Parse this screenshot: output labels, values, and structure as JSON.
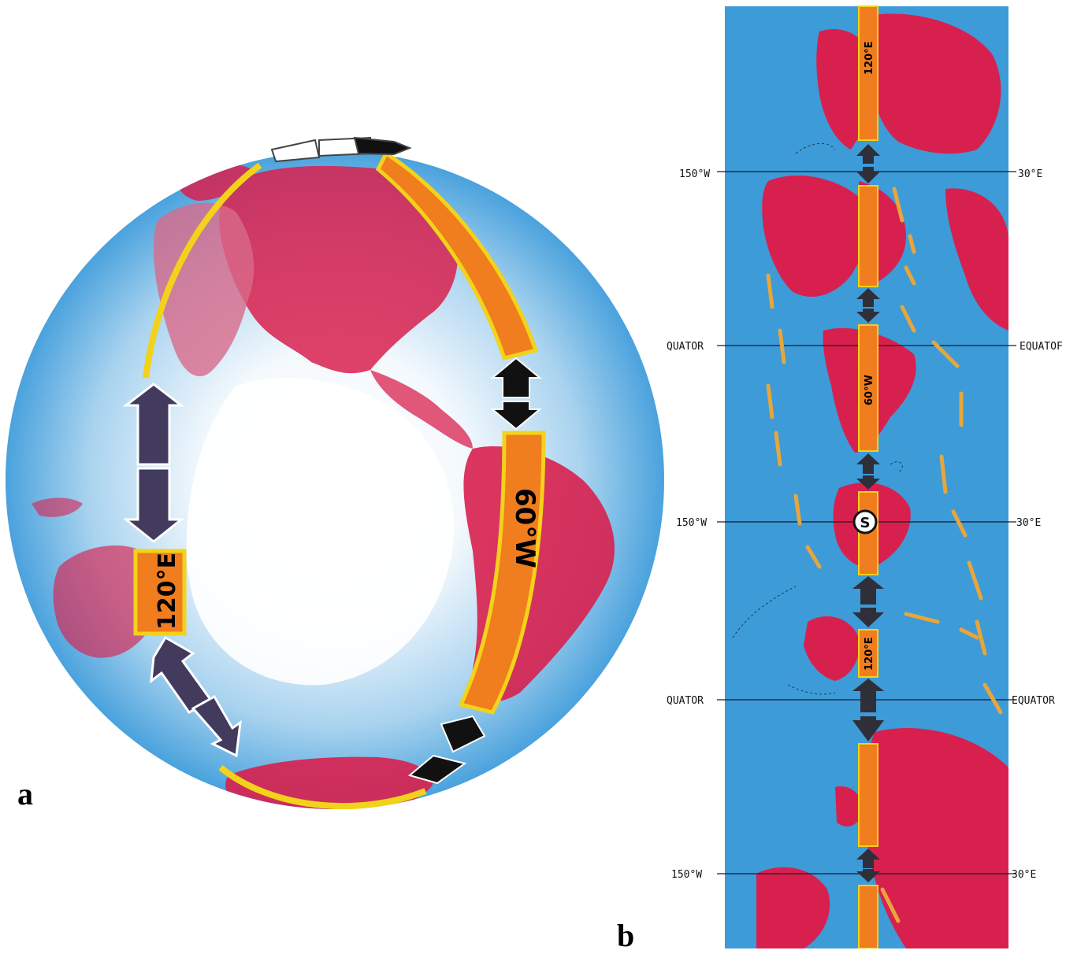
{
  "figure": {
    "panel_a_label": "a",
    "panel_b_label": "b"
  },
  "globe": {
    "meridian_60w": "60°W",
    "meridian_120e": "120°E"
  },
  "strip": {
    "rows": [
      {
        "left": "150°W",
        "right": "30°E"
      },
      {
        "left": "QUATOR",
        "right": "EQUATOF"
      },
      {
        "left": "150°W",
        "right": "30°E"
      },
      {
        "left": "QUATOR",
        "right": "EQUATOR"
      },
      {
        "left": "150°W",
        "right": "30°E"
      }
    ],
    "belt_labels": [
      "120°E",
      "60°W",
      "120°E"
    ],
    "pole_marker": "S"
  },
  "colors": {
    "ocean": "#3d9bd8",
    "land": "#d8204e",
    "belt": "#f07d1e",
    "belt_edge": "#f2d21a",
    "arrow": "#222222",
    "current": "#e8a63a"
  }
}
